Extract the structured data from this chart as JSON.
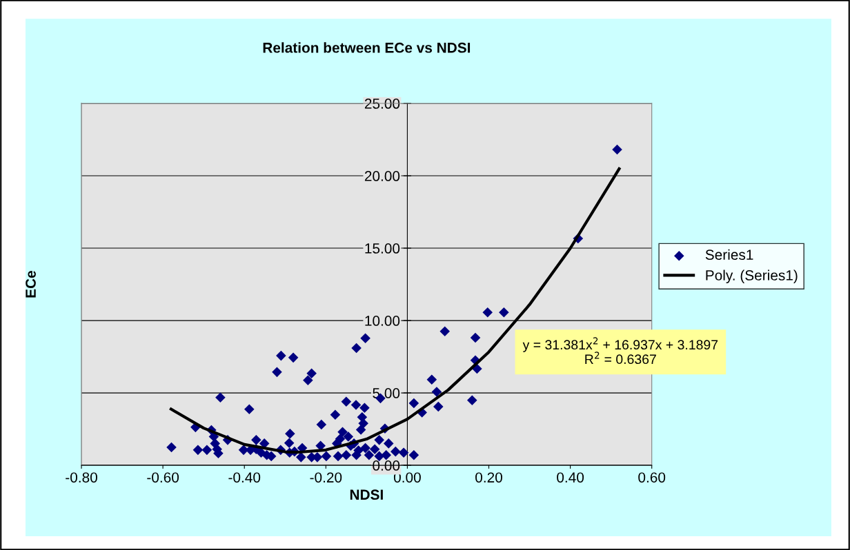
{
  "chart_data": {
    "type": "scatter",
    "title": "Relation between ECe vs NDSI",
    "xlabel": "NDSI",
    "ylabel": "ECe",
    "xlim": [
      -0.8,
      0.6
    ],
    "xticks": [
      {
        "value": -0.8,
        "label": "-0.80"
      },
      {
        "value": -0.6,
        "label": "-0.60"
      },
      {
        "value": -0.4,
        "label": "-0.40"
      },
      {
        "value": -0.2,
        "label": "-0.20"
      },
      {
        "value": 0,
        "label": "0.00"
      },
      {
        "value": 0.2,
        "label": "0.20"
      },
      {
        "value": 0.4,
        "label": "0.40"
      },
      {
        "value": 0.6,
        "label": "0.60"
      }
    ],
    "ylim": [
      0,
      25
    ],
    "yticks": [
      {
        "value": 0,
        "label": "0.00"
      },
      {
        "value": 5,
        "label": "5.00"
      },
      {
        "value": 10,
        "label": "10.00"
      },
      {
        "value": 15,
        "label": "15.00"
      },
      {
        "value": 20,
        "label": "20.00"
      },
      {
        "value": 25,
        "label": "25.00"
      }
    ],
    "grid": "y",
    "legend": "right",
    "marker": "diamond",
    "annotations": [
      "y = 31.381x$^{2}$ + 16.937x + 3.1897\nR$^{2}$ = 0.6367"
    ],
    "series": [
      {
        "name": "Series1",
        "color": "#000080",
        "x": [
          -0.579,
          -0.31,
          -0.28,
          -0.32,
          -0.459,
          -0.388,
          -0.52,
          -0.481,
          -0.475,
          -0.472,
          -0.467,
          -0.464,
          -0.514,
          -0.492,
          -0.441,
          -0.402,
          -0.371,
          -0.385,
          -0.351,
          -0.359,
          -0.334,
          -0.345,
          -0.371,
          -0.311,
          -0.288,
          -0.29,
          -0.289,
          -0.235,
          -0.244,
          -0.103,
          -0.125,
          -0.15,
          -0.126,
          -0.066,
          0.016,
          0.036,
          -0.177,
          -0.105,
          -0.111,
          -0.108,
          -0.114,
          -0.211,
          -0.055,
          -0.069,
          -0.046,
          -0.145,
          -0.165,
          -0.173,
          -0.139,
          -0.258,
          -0.213,
          -0.103,
          -0.08,
          -0.029,
          -0.009,
          0.016,
          -0.261,
          -0.235,
          -0.221,
          -0.199,
          -0.17,
          -0.15,
          -0.125,
          -0.12,
          -0.094,
          -0.069,
          -0.052,
          -0.277,
          -0.159,
          -0.131,
          0.197,
          0.237,
          0.092,
          0.167,
          0.167,
          0.171,
          0.06,
          0.072,
          0.076,
          0.159,
          0.419,
          0.515
        ],
        "values": [
          1.24,
          7.57,
          7.44,
          6.44,
          4.68,
          3.87,
          2.63,
          2.43,
          1.98,
          1.51,
          1.11,
          0.83,
          1.06,
          1.06,
          1.75,
          1.06,
          1.75,
          1.06,
          1.51,
          0.87,
          0.63,
          0.71,
          1.11,
          1.06,
          2.18,
          1.54,
          0.87,
          6.35,
          5.87,
          8.78,
          8.1,
          4.4,
          4.17,
          4.63,
          4.29,
          3.65,
          3.49,
          3.97,
          3.33,
          2.9,
          2.46,
          2.81,
          2.54,
          1.75,
          1.51,
          1.98,
          1.83,
          1.51,
          1.35,
          1.19,
          1.35,
          1.19,
          1.11,
          0.95,
          0.87,
          0.71,
          0.56,
          0.56,
          0.56,
          0.63,
          0.63,
          0.71,
          0.71,
          1.03,
          0.71,
          0.63,
          0.71,
          0.95,
          2.3,
          1.51,
          10.56,
          10.56,
          9.25,
          8.81,
          7.25,
          6.67,
          5.92,
          5.08,
          4.05,
          4.49,
          15.67,
          21.81
        ]
      },
      {
        "name": "Poly. (Series1)",
        "color": "#000000",
        "type": "line",
        "marker": "none",
        "line_style": "solid",
        "x": [
          -0.58,
          -0.5,
          -0.4,
          -0.3,
          -0.27,
          -0.2,
          -0.1,
          0,
          0.1,
          0.2,
          0.3,
          0.4,
          0.52
        ],
        "values": [
          3.88,
          2.57,
          1.44,
          0.93,
          0.9,
          1.06,
          1.81,
          3.19,
          5.2,
          7.83,
          11.1,
          14.99,
          20.48
        ]
      }
    ]
  }
}
